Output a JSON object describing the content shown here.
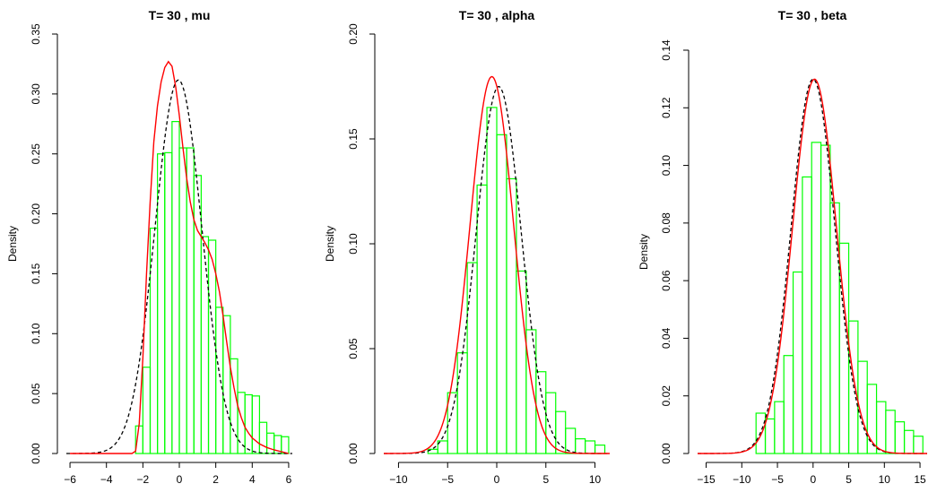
{
  "chart_data": [
    {
      "type": "histogram",
      "title": "T= 30 , mu",
      "ylabel": "Density",
      "xlabel": "",
      "xlim": [
        -6.2,
        6.2
      ],
      "ylim": [
        0,
        0.35
      ],
      "xticks": [
        -6,
        -4,
        -2,
        0,
        2,
        4,
        6
      ],
      "yticks": [
        0.0,
        0.05,
        0.1,
        0.15,
        0.2,
        0.25,
        0.3,
        0.35
      ],
      "ytick_labels": [
        "0.00",
        "0.05",
        "0.10",
        "0.15",
        "0.20",
        "0.25",
        "0.30",
        "0.35"
      ],
      "bin_width": 0.4,
      "bins": [
        {
          "x0": -2.4,
          "x1": -2.0,
          "value": 0.023
        },
        {
          "x0": -2.0,
          "x1": -1.6,
          "value": 0.072
        },
        {
          "x0": -1.6,
          "x1": -1.2,
          "value": 0.188
        },
        {
          "x0": -1.2,
          "x1": -0.8,
          "value": 0.25
        },
        {
          "x0": -0.8,
          "x1": -0.4,
          "value": 0.251
        },
        {
          "x0": -0.4,
          "x1": 0.0,
          "value": 0.277
        },
        {
          "x0": 0.0,
          "x1": 0.4,
          "value": 0.255
        },
        {
          "x0": 0.4,
          "x1": 0.8,
          "value": 0.255
        },
        {
          "x0": 0.8,
          "x1": 1.2,
          "value": 0.232
        },
        {
          "x0": 1.2,
          "x1": 1.6,
          "value": 0.181
        },
        {
          "x0": 1.6,
          "x1": 2.0,
          "value": 0.178
        },
        {
          "x0": 2.0,
          "x1": 2.4,
          "value": 0.122
        },
        {
          "x0": 2.4,
          "x1": 2.8,
          "value": 0.115
        },
        {
          "x0": 2.8,
          "x1": 3.2,
          "value": 0.079
        },
        {
          "x0": 3.2,
          "x1": 3.6,
          "value": 0.051
        },
        {
          "x0": 3.6,
          "x1": 4.0,
          "value": 0.049
        },
        {
          "x0": 4.0,
          "x1": 4.4,
          "value": 0.048
        },
        {
          "x0": 4.4,
          "x1": 4.8,
          "value": 0.026
        },
        {
          "x0": 4.8,
          "x1": 5.2,
          "value": 0.017
        },
        {
          "x0": 5.2,
          "x1": 5.6,
          "value": 0.015
        },
        {
          "x0": 5.6,
          "x1": 6.0,
          "value": 0.014
        }
      ],
      "red_curve": {
        "x": [
          -6.0,
          -2.6,
          -2.4,
          -2.2,
          -2.0,
          -1.8,
          -1.6,
          -1.4,
          -1.2,
          -1.0,
          -0.8,
          -0.6,
          -0.4,
          -0.2,
          0.0,
          0.2,
          0.4,
          0.6,
          0.8,
          1.0,
          1.2,
          1.4,
          1.6,
          1.8,
          2.0,
          2.2,
          2.4,
          2.6,
          2.8,
          3.0,
          3.2,
          3.4,
          3.6,
          3.8,
          4.0,
          4.4,
          4.8,
          5.2,
          6.0
        ],
        "y": [
          0.0,
          0.0,
          0.002,
          0.025,
          0.08,
          0.15,
          0.21,
          0.26,
          0.29,
          0.31,
          0.322,
          0.327,
          0.323,
          0.306,
          0.282,
          0.255,
          0.23,
          0.21,
          0.195,
          0.186,
          0.181,
          0.176,
          0.17,
          0.162,
          0.15,
          0.135,
          0.115,
          0.093,
          0.072,
          0.055,
          0.04,
          0.03,
          0.022,
          0.017,
          0.013,
          0.008,
          0.005,
          0.003,
          0.0
        ]
      },
      "black_curve": {
        "type": "normal",
        "mean": -0.05,
        "sd": 1.28
      }
    },
    {
      "type": "histogram",
      "title": "T= 30 , alpha",
      "ylabel": "Density",
      "xlabel": "",
      "xlim": [
        -11.5,
        11.5
      ],
      "ylim": [
        0,
        0.2
      ],
      "xticks": [
        -10,
        -5,
        0,
        5,
        10
      ],
      "yticks": [
        0.0,
        0.05,
        0.1,
        0.15,
        0.2
      ],
      "ytick_labels": [
        "0.00",
        "0.05",
        "0.10",
        "0.15",
        "0.20"
      ],
      "bin_width": 1,
      "bins": [
        {
          "x0": -7,
          "x1": -6,
          "value": 0.002
        },
        {
          "x0": -6,
          "x1": -5,
          "value": 0.006
        },
        {
          "x0": -5,
          "x1": -4,
          "value": 0.029
        },
        {
          "x0": -4,
          "x1": -3,
          "value": 0.048
        },
        {
          "x0": -3,
          "x1": -2,
          "value": 0.091
        },
        {
          "x0": -2,
          "x1": -1,
          "value": 0.128
        },
        {
          "x0": -1,
          "x1": 0,
          "value": 0.165
        },
        {
          "x0": 0,
          "x1": 1,
          "value": 0.152
        },
        {
          "x0": 1,
          "x1": 2,
          "value": 0.131
        },
        {
          "x0": 2,
          "x1": 3,
          "value": 0.087
        },
        {
          "x0": 3,
          "x1": 4,
          "value": 0.059
        },
        {
          "x0": 4,
          "x1": 5,
          "value": 0.039
        },
        {
          "x0": 5,
          "x1": 6,
          "value": 0.029
        },
        {
          "x0": 6,
          "x1": 7,
          "value": 0.02
        },
        {
          "x0": 7,
          "x1": 8,
          "value": 0.012
        },
        {
          "x0": 8,
          "x1": 9,
          "value": 0.007
        },
        {
          "x0": 9,
          "x1": 10,
          "value": 0.006
        },
        {
          "x0": 10,
          "x1": 11,
          "value": 0.004
        }
      ],
      "red_curve": {
        "type": "normal",
        "mean": -0.5,
        "sd": 2.22
      },
      "black_curve": {
        "type": "normal",
        "mean": 0.2,
        "sd": 2.28
      }
    },
    {
      "type": "histogram",
      "title": "T= 30 , beta",
      "ylabel": "Density",
      "xlabel": "",
      "xlim": [
        -16.2,
        16.0
      ],
      "ylim": [
        0,
        0.14
      ],
      "xticks": [
        -15,
        -10,
        -5,
        0,
        5,
        10,
        15
      ],
      "yticks": [
        0.0,
        0.02,
        0.04,
        0.06,
        0.08,
        0.1,
        0.12,
        0.14
      ],
      "ytick_labels": [
        "0.00",
        "0.02",
        "0.04",
        "0.06",
        "0.08",
        "0.10",
        "0.12",
        "0.14"
      ],
      "bin_width": 1.3,
      "bins": [
        {
          "x0": -8.0,
          "x1": -6.7,
          "value": 0.014
        },
        {
          "x0": -6.7,
          "x1": -5.4,
          "value": 0.012
        },
        {
          "x0": -5.4,
          "x1": -4.1,
          "value": 0.018
        },
        {
          "x0": -4.1,
          "x1": -2.8,
          "value": 0.034
        },
        {
          "x0": -2.8,
          "x1": -1.5,
          "value": 0.063
        },
        {
          "x0": -1.5,
          "x1": -0.2,
          "value": 0.096
        },
        {
          "x0": -0.2,
          "x1": 1.1,
          "value": 0.108
        },
        {
          "x0": 1.1,
          "x1": 2.4,
          "value": 0.107
        },
        {
          "x0": 2.4,
          "x1": 3.7,
          "value": 0.087
        },
        {
          "x0": 3.7,
          "x1": 5.0,
          "value": 0.073
        },
        {
          "x0": 5.0,
          "x1": 6.3,
          "value": 0.046
        },
        {
          "x0": 6.3,
          "x1": 7.6,
          "value": 0.032
        },
        {
          "x0": 7.6,
          "x1": 8.9,
          "value": 0.024
        },
        {
          "x0": 8.9,
          "x1": 10.2,
          "value": 0.018
        },
        {
          "x0": 10.2,
          "x1": 11.5,
          "value": 0.015
        },
        {
          "x0": 11.5,
          "x1": 12.8,
          "value": 0.011
        },
        {
          "x0": 12.8,
          "x1": 14.1,
          "value": 0.008
        },
        {
          "x0": 14.1,
          "x1": 15.4,
          "value": 0.006
        }
      ],
      "red_curve": {
        "type": "normal",
        "mean": 0.2,
        "sd": 3.07
      },
      "black_curve": {
        "type": "normal",
        "mean": 0.0,
        "sd": 3.07
      }
    }
  ]
}
